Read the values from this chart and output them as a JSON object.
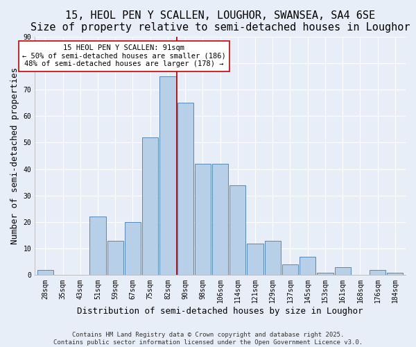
{
  "title": "15, HEOL PEN Y SCALLEN, LOUGHOR, SWANSEA, SA4 6SE",
  "subtitle": "Size of property relative to semi-detached houses in Loughor",
  "xlabel": "Distribution of semi-detached houses by size in Loughor",
  "ylabel": "Number of semi-detached properties",
  "bar_labels": [
    "28sqm",
    "35sqm",
    "43sqm",
    "51sqm",
    "59sqm",
    "67sqm",
    "75sqm",
    "82sqm",
    "90sqm",
    "98sqm",
    "106sqm",
    "114sqm",
    "121sqm",
    "129sqm",
    "137sqm",
    "145sqm",
    "153sqm",
    "161sqm",
    "168sqm",
    "176sqm",
    "184sqm"
  ],
  "bar_values": [
    2,
    0,
    0,
    22,
    13,
    20,
    52,
    75,
    65,
    42,
    42,
    34,
    12,
    13,
    4,
    7,
    1,
    3,
    0,
    2,
    1
  ],
  "bar_color": "#b8cfe8",
  "bar_edge_color": "#5588bb",
  "vline_color": "#cc0000",
  "annotation_line1": "15 HEOL PEN Y SCALLEN: 91sqm",
  "annotation_line2": "← 50% of semi-detached houses are smaller (186)",
  "annotation_line3": "48% of semi-detached houses are larger (178) →",
  "annotation_box_color": "#ffffff",
  "annotation_box_edge": "#cc0000",
  "ylim": [
    0,
    90
  ],
  "yticks": [
    0,
    10,
    20,
    30,
    40,
    50,
    60,
    70,
    80,
    90
  ],
  "background_color": "#e8eef8",
  "grid_color": "#ffffff",
  "footer_line1": "Contains HM Land Registry data © Crown copyright and database right 2025.",
  "footer_line2": "Contains public sector information licensed under the Open Government Licence v3.0.",
  "title_fontsize": 11,
  "subtitle_fontsize": 9,
  "axis_label_fontsize": 9,
  "tick_fontsize": 7,
  "annotation_fontsize": 7.5,
  "footer_fontsize": 6.5
}
